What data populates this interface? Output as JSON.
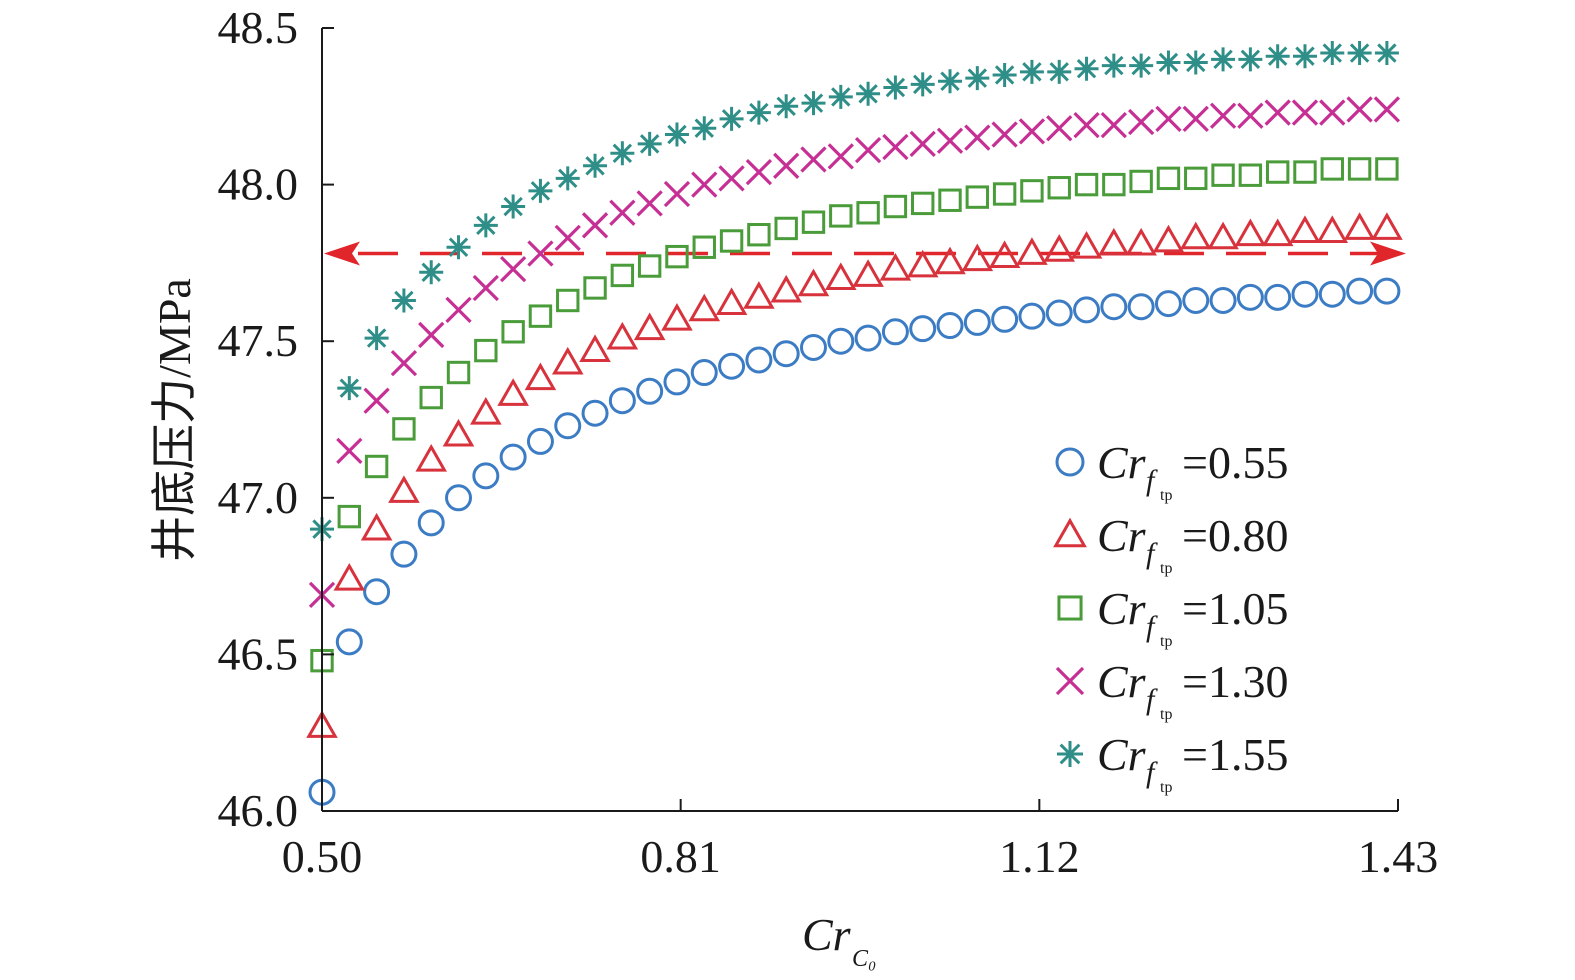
{
  "chart_data": {
    "type": "scatter",
    "title": "",
    "ylabel": "井底压力/MPa",
    "xlabel": {
      "main": "Cr",
      "sub": "C₀"
    },
    "xlim": [
      0.5,
      1.43
    ],
    "ylim": [
      46.0,
      48.5
    ],
    "xticks": [
      "0.50",
      "0.81",
      "1.12",
      "1.43"
    ],
    "yticks": [
      "46.0",
      "46.5",
      "47.0",
      "47.5",
      "48.0",
      "48.5"
    ],
    "grid": false,
    "legend_position": "bottom-right",
    "reference_line": {
      "y": 47.78,
      "style": "dashed",
      "arrows": "both",
      "color": "#e0262b"
    },
    "x": [
      0.5,
      0.5236,
      0.5472,
      0.5708,
      0.5944,
      0.618,
      0.6416,
      0.6652,
      0.6888,
      0.7124,
      0.736,
      0.7596,
      0.7832,
      0.8068,
      0.8304,
      0.854,
      0.8776,
      0.9012,
      0.9248,
      0.9484,
      0.972,
      0.9956,
      1.0192,
      1.0428,
      1.0664,
      1.09,
      1.1136,
      1.1372,
      1.1608,
      1.1844,
      1.208,
      1.2316,
      1.2552,
      1.2788,
      1.3024,
      1.326,
      1.3496,
      1.3732,
      1.3968,
      1.4204
    ],
    "series": [
      {
        "legend_main": "Cr",
        "legend_sub_f": "f",
        "legend_sub_tp": "tp",
        "legend_value": "=0.55",
        "marker": "circle",
        "color": "#3b7cc4",
        "values": [
          46.06,
          46.54,
          46.7,
          46.82,
          46.92,
          47.0,
          47.07,
          47.13,
          47.18,
          47.23,
          47.27,
          47.31,
          47.34,
          47.37,
          47.4,
          47.42,
          47.44,
          47.46,
          47.48,
          47.5,
          47.51,
          47.53,
          47.54,
          47.55,
          47.56,
          47.57,
          47.58,
          47.59,
          47.6,
          47.61,
          47.61,
          47.62,
          47.63,
          47.63,
          47.64,
          47.64,
          47.65,
          47.65,
          47.66,
          47.66
        ]
      },
      {
        "legend_main": "Cr",
        "legend_sub_f": "f",
        "legend_sub_tp": "tp",
        "legend_value": "=0.80",
        "marker": "triangle",
        "color": "#d8323c",
        "values": [
          46.27,
          46.74,
          46.9,
          47.02,
          47.12,
          47.2,
          47.27,
          47.33,
          47.38,
          47.43,
          47.47,
          47.51,
          47.54,
          47.57,
          47.6,
          47.62,
          47.64,
          47.66,
          47.68,
          47.7,
          47.71,
          47.73,
          47.74,
          47.75,
          47.76,
          47.77,
          47.78,
          47.79,
          47.8,
          47.81,
          47.81,
          47.82,
          47.83,
          47.83,
          47.84,
          47.84,
          47.85,
          47.85,
          47.86,
          47.86
        ]
      },
      {
        "legend_main": "Cr",
        "legend_sub_f": "f",
        "legend_sub_tp": "tp",
        "legend_value": "=1.05",
        "marker": "square",
        "color": "#4a9c3a",
        "values": [
          46.48,
          46.94,
          47.1,
          47.22,
          47.32,
          47.4,
          47.47,
          47.53,
          47.58,
          47.63,
          47.67,
          47.71,
          47.74,
          47.77,
          47.8,
          47.82,
          47.84,
          47.86,
          47.88,
          47.9,
          47.91,
          47.93,
          47.94,
          47.95,
          47.96,
          47.97,
          47.98,
          47.99,
          48.0,
          48.0,
          48.01,
          48.02,
          48.02,
          48.03,
          48.03,
          48.04,
          48.04,
          48.05,
          48.05,
          48.05
        ]
      },
      {
        "legend_main": "Cr",
        "legend_sub_f": "f",
        "legend_sub_tp": "tp",
        "legend_value": "=1.30",
        "marker": "x",
        "color": "#c62f94",
        "values": [
          46.69,
          47.15,
          47.31,
          47.43,
          47.52,
          47.6,
          47.67,
          47.73,
          47.78,
          47.83,
          47.87,
          47.91,
          47.94,
          47.97,
          48.0,
          48.02,
          48.04,
          48.06,
          48.08,
          48.09,
          48.11,
          48.12,
          48.13,
          48.14,
          48.15,
          48.16,
          48.17,
          48.18,
          48.19,
          48.19,
          48.2,
          48.21,
          48.21,
          48.22,
          48.22,
          48.23,
          48.23,
          48.23,
          48.24,
          48.24
        ]
      },
      {
        "legend_main": "Cr",
        "legend_sub_f": "f",
        "legend_sub_tp": "tp",
        "legend_value": "=1.55",
        "marker": "asterisk",
        "color": "#2f8f88",
        "values": [
          46.9,
          47.35,
          47.51,
          47.63,
          47.72,
          47.8,
          47.87,
          47.93,
          47.98,
          48.02,
          48.06,
          48.1,
          48.13,
          48.16,
          48.18,
          48.21,
          48.23,
          48.25,
          48.26,
          48.28,
          48.29,
          48.31,
          48.32,
          48.33,
          48.34,
          48.35,
          48.36,
          48.36,
          48.37,
          48.38,
          48.38,
          48.39,
          48.39,
          48.4,
          48.4,
          48.41,
          48.41,
          48.42,
          48.42,
          48.42
        ]
      }
    ]
  }
}
